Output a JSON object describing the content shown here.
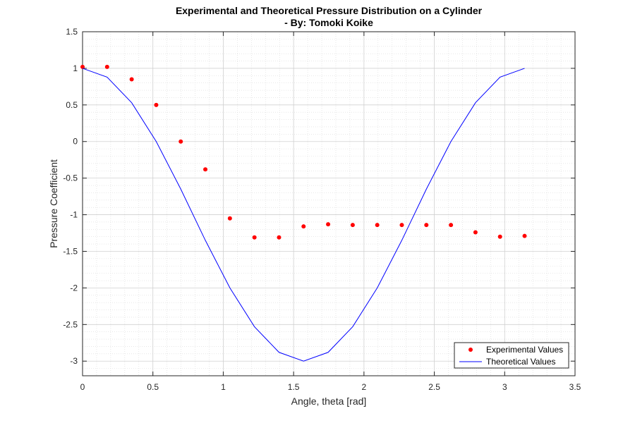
{
  "chart_data": {
    "type": "line",
    "title": "Experimental and Theoretical Pressure Distribution on a Cylinder",
    "subtitle": "- By: Tomoki Koike",
    "xlabel": "Angle, theta [rad]",
    "ylabel": "Pressure Coefficient",
    "xlim": [
      0,
      3.5
    ],
    "ylim": [
      -3.2,
      1.5
    ],
    "xticks": [
      0,
      0.5,
      1,
      1.5,
      2,
      2.5,
      3,
      3.5
    ],
    "yticks": [
      1.5,
      1,
      0.5,
      0,
      -0.5,
      -1,
      -1.5,
      -2,
      -2.5,
      -3
    ],
    "grid": true,
    "minor_grid": true,
    "legend_position": "bottom-right",
    "series": [
      {
        "name": "Experimental Values",
        "style": "markers",
        "color": "#ff0000",
        "x": [
          0,
          0.1745,
          0.3491,
          0.5236,
          0.6981,
          0.8727,
          1.0472,
          1.2217,
          1.3963,
          1.5708,
          1.7453,
          1.9199,
          2.0944,
          2.2689,
          2.4435,
          2.618,
          2.7925,
          2.9671,
          3.1416
        ],
        "y": [
          1.02,
          1.02,
          0.85,
          0.5,
          0.0,
          -0.38,
          -1.05,
          -1.31,
          -1.31,
          -1.16,
          -1.13,
          -1.14,
          -1.14,
          -1.14,
          -1.14,
          -1.14,
          -1.24,
          -1.3,
          -1.29
        ]
      },
      {
        "name": "Theoretical Values",
        "style": "line",
        "color": "#0000ff",
        "x": [
          0,
          0.1745,
          0.3491,
          0.5236,
          0.6981,
          0.8727,
          1.0472,
          1.2217,
          1.3963,
          1.5708,
          1.7453,
          1.9199,
          2.0944,
          2.2689,
          2.4435,
          2.618,
          2.7925,
          2.9671,
          3.1416
        ],
        "y": [
          1.0,
          0.88,
          0.53,
          0.0,
          -0.65,
          -1.35,
          -2.0,
          -2.53,
          -2.88,
          -3.0,
          -2.88,
          -2.53,
          -2.0,
          -1.35,
          -0.65,
          0.0,
          0.53,
          0.88,
          1.0
        ]
      }
    ]
  }
}
